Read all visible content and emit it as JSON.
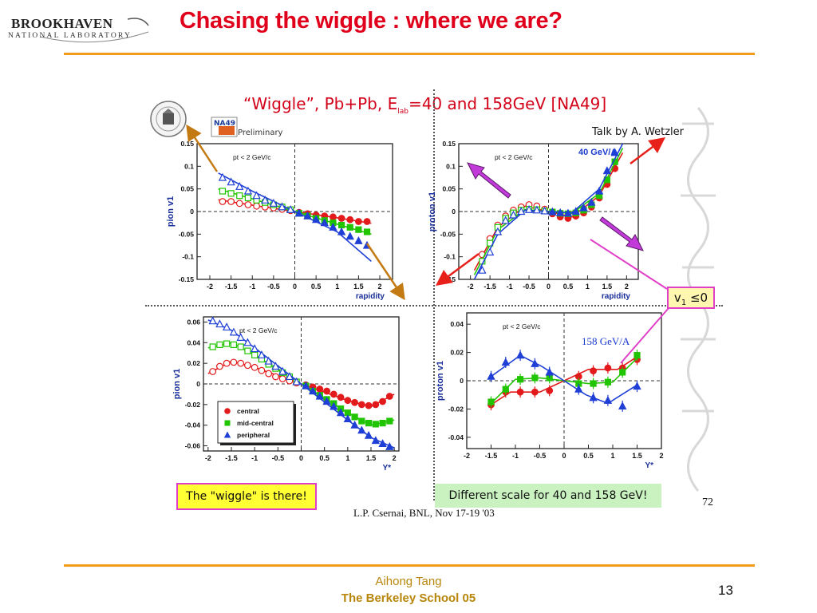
{
  "slide": {
    "title": "Chasing the wiggle : where we are?",
    "logo_name": "BROOKHAVEN",
    "logo_sub": "NATIONAL LABORATORY",
    "footer_author": "Aihong Tang",
    "footer_school": "The Berkeley School 05",
    "page_number": "13",
    "colors": {
      "title": "#e0001b",
      "rule": "#f39c1a",
      "footer": "#b8860b"
    }
  },
  "figure": {
    "title_main": "“Wiggle”, Pb+Pb, E",
    "title_sub": "lab",
    "title_end": "=40 and 158GeV [NA49]",
    "talk": "Talk by A. Wetzler",
    "na49_logo": "NA49",
    "preliminary": "Preliminary",
    "v1_label": "v",
    "v1_sub": "1",
    "v1_rest": " ≤0",
    "wiggle_note": "The \"wiggle\" is there!",
    "scale_note": "Different scale for 40 and 158 GeV!",
    "page_ref": "72",
    "credit": "L.P. Csernai, BNL, Nov 17-19 '03"
  },
  "chart_data": [
    {
      "type": "scatter",
      "id": "pion40",
      "ylabel": "pion v1",
      "xlabel": "rapidity",
      "annotation": "pt < 2 GeV/c",
      "xlim": [
        -2.3,
        2.3
      ],
      "ylim": [
        -0.15,
        0.15
      ],
      "xticks": [
        -2,
        -1.5,
        -1,
        -0.5,
        0,
        0.5,
        1,
        1.5,
        2
      ],
      "yticks": [
        -0.15,
        -0.1,
        -0.05,
        0,
        0.05,
        0.1,
        0.15
      ],
      "series": [
        {
          "color": "#e31a1c",
          "marker": "circle",
          "x": [
            -1.7,
            -1.5,
            -1.3,
            -1.1,
            -0.9,
            -0.7,
            -0.5,
            -0.3,
            -0.1,
            0.1,
            0.3,
            0.5,
            0.7,
            0.9,
            1.1,
            1.3,
            1.5,
            1.7
          ],
          "y": [
            0.022,
            0.022,
            0.018,
            0.015,
            0.012,
            0.01,
            0.008,
            0.005,
            0.002,
            -0.002,
            -0.005,
            -0.008,
            -0.01,
            -0.012,
            -0.015,
            -0.018,
            -0.022,
            -0.022
          ],
          "fit": [
            [
              -1.8,
              0.026
            ],
            [
              -1,
              0.014
            ],
            [
              0,
              0
            ],
            [
              1,
              -0.014
            ],
            [
              1.8,
              -0.026
            ]
          ]
        },
        {
          "color": "#21c400",
          "marker": "square",
          "x": [
            -1.7,
            -1.5,
            -1.3,
            -1.1,
            -0.9,
            -0.7,
            -0.5,
            -0.3,
            -0.1,
            0.1,
            0.3,
            0.5,
            0.7,
            0.9,
            1.1,
            1.3,
            1.5,
            1.7
          ],
          "y": [
            0.045,
            0.04,
            0.035,
            0.03,
            0.025,
            0.02,
            0.015,
            0.01,
            0.004,
            -0.004,
            -0.01,
            -0.015,
            -0.02,
            -0.025,
            -0.03,
            -0.035,
            -0.04,
            -0.045
          ],
          "fit": [
            [
              -1.8,
              0.05
            ],
            [
              -1,
              0.028
            ],
            [
              0,
              0
            ],
            [
              1,
              -0.028
            ],
            [
              1.8,
              -0.05
            ]
          ]
        },
        {
          "color": "#1f3fd6",
          "marker": "triangle",
          "x": [
            -1.7,
            -1.5,
            -1.3,
            -1.1,
            -0.9,
            -0.7,
            -0.5,
            -0.3,
            -0.1,
            0.1,
            0.3,
            0.5,
            0.7,
            0.9,
            1.1,
            1.3,
            1.5,
            1.7
          ],
          "y": [
            0.075,
            0.065,
            0.055,
            0.045,
            0.035,
            0.025,
            0.018,
            0.01,
            0.004,
            -0.004,
            -0.01,
            -0.018,
            -0.025,
            -0.035,
            -0.045,
            -0.055,
            -0.065,
            -0.075
          ],
          "fit": [
            [
              -1.8,
              0.085
            ],
            [
              -1,
              0.045
            ],
            [
              0,
              0
            ],
            [
              1,
              -0.045
            ],
            [
              1.8,
              -0.11
            ]
          ]
        }
      ]
    },
    {
      "type": "scatter",
      "id": "proton40",
      "ylabel": "proton v1",
      "xlabel": "rapidity",
      "annotation": "pt < 2 GeV/c",
      "energy_label": "40 GeV/A",
      "xlim": [
        -2.3,
        2.3
      ],
      "ylim": [
        -0.15,
        0.15
      ],
      "xticks": [
        -2,
        -1.5,
        -1,
        -0.5,
        0,
        0.5,
        1,
        1.5,
        2
      ],
      "yticks": [
        -0.15,
        -0.1,
        -0.05,
        0,
        0.05,
        0.1,
        0.15
      ],
      "series": [
        {
          "color": "#e31a1c",
          "marker": "circle",
          "x": [
            -1.7,
            -1.5,
            -1.3,
            -1.1,
            -0.9,
            -0.7,
            -0.5,
            -0.3,
            -0.1,
            0.1,
            0.3,
            0.5,
            0.7,
            0.9,
            1.1,
            1.3,
            1.5,
            1.7
          ],
          "y": [
            -0.095,
            -0.06,
            -0.03,
            -0.01,
            0.003,
            0.01,
            0.015,
            0.012,
            0.005,
            -0.005,
            -0.012,
            -0.015,
            -0.01,
            -0.003,
            0.01,
            0.03,
            0.06,
            0.095
          ],
          "fit": [
            [
              -1.9,
              -0.13
            ],
            [
              -1.3,
              -0.035
            ],
            [
              -0.6,
              0.012
            ],
            [
              0,
              0
            ],
            [
              0.6,
              -0.012
            ],
            [
              1.3,
              0.035
            ],
            [
              1.9,
              0.13
            ]
          ]
        },
        {
          "color": "#21c400",
          "marker": "square",
          "x": [
            -1.7,
            -1.5,
            -1.3,
            -1.1,
            -0.9,
            -0.7,
            -0.5,
            -0.3,
            -0.1,
            0.1,
            0.3,
            0.5,
            0.7,
            0.9,
            1.1,
            1.3,
            1.5,
            1.7
          ],
          "y": [
            -0.11,
            -0.07,
            -0.035,
            -0.015,
            -0.003,
            0.003,
            0.005,
            0.004,
            0.001,
            -0.001,
            -0.004,
            -0.005,
            -0.003,
            0.003,
            0.015,
            0.035,
            0.07,
            0.11
          ],
          "fit": [
            [
              -1.9,
              -0.14
            ],
            [
              -1.3,
              -0.04
            ],
            [
              -0.6,
              0.004
            ],
            [
              0,
              0
            ],
            [
              0.6,
              -0.004
            ],
            [
              1.3,
              0.04
            ],
            [
              1.9,
              0.14
            ]
          ]
        },
        {
          "color": "#1f3fd6",
          "marker": "triangle",
          "x": [
            -1.7,
            -1.5,
            -1.3,
            -1.1,
            -0.9,
            -0.7,
            -0.5,
            -0.3,
            -0.1,
            0.1,
            0.3,
            0.5,
            0.7,
            0.9,
            1.1,
            1.3,
            1.5,
            1.7
          ],
          "y": [
            -0.13,
            -0.09,
            -0.045,
            -0.02,
            -0.008,
            0.0,
            0.004,
            0.003,
            0.001,
            -0.001,
            -0.003,
            -0.004,
            0.0,
            0.008,
            0.02,
            0.045,
            0.09,
            0.13
          ],
          "fit": [
            [
              -1.9,
              -0.15
            ],
            [
              -1.3,
              -0.05
            ],
            [
              -0.6,
              0.003
            ],
            [
              0,
              0
            ],
            [
              0.6,
              -0.003
            ],
            [
              1.3,
              0.05
            ],
            [
              1.9,
              0.15
            ]
          ]
        }
      ]
    },
    {
      "type": "scatter",
      "id": "pion158",
      "ylabel": "pion v1",
      "xlabel": "Y*",
      "annotation": "pt < 2 GeV/c",
      "xlim": [
        -2.1,
        2.1
      ],
      "ylim": [
        -0.065,
        0.065
      ],
      "xticks": [
        -2,
        -1.5,
        -1,
        -0.5,
        0,
        0.5,
        1,
        1.5,
        2
      ],
      "yticks": [
        -0.06,
        -0.04,
        -0.02,
        0,
        0.02,
        0.04,
        0.06
      ],
      "legend": {
        "position": "lower-left",
        "entries": [
          "central",
          "mid-central",
          "peripheral"
        ]
      },
      "series": [
        {
          "name": "central",
          "color": "#e31a1c",
          "marker": "circle",
          "x": [
            -1.9,
            -1.75,
            -1.6,
            -1.45,
            -1.3,
            -1.15,
            -1,
            -0.85,
            -0.7,
            -0.55,
            -0.4,
            -0.25,
            -0.1,
            0.1,
            0.25,
            0.4,
            0.55,
            0.7,
            0.85,
            1,
            1.15,
            1.3,
            1.45,
            1.6,
            1.75,
            1.9
          ],
          "y": [
            0.012,
            0.017,
            0.02,
            0.021,
            0.02,
            0.018,
            0.016,
            0.013,
            0.01,
            0.007,
            0.005,
            0.003,
            0.001,
            -0.001,
            -0.003,
            -0.005,
            -0.007,
            -0.01,
            -0.013,
            -0.016,
            -0.018,
            -0.02,
            -0.021,
            -0.02,
            -0.017,
            -0.012
          ],
          "fit": [
            [
              -2,
              0.01
            ],
            [
              -1.5,
              0.022
            ],
            [
              -1,
              0.016
            ],
            [
              0,
              0
            ],
            [
              1,
              -0.016
            ],
            [
              1.5,
              -0.022
            ],
            [
              2,
              -0.01
            ]
          ]
        },
        {
          "name": "mid-central",
          "color": "#21c400",
          "marker": "square",
          "x": [
            -1.9,
            -1.75,
            -1.6,
            -1.45,
            -1.3,
            -1.15,
            -1,
            -0.85,
            -0.7,
            -0.55,
            -0.4,
            -0.25,
            -0.1,
            0.1,
            0.25,
            0.4,
            0.55,
            0.7,
            0.85,
            1,
            1.15,
            1.3,
            1.45,
            1.6,
            1.75,
            1.9
          ],
          "y": [
            0.036,
            0.038,
            0.039,
            0.038,
            0.036,
            0.032,
            0.028,
            0.024,
            0.019,
            0.015,
            0.011,
            0.007,
            0.002,
            -0.002,
            -0.007,
            -0.011,
            -0.015,
            -0.019,
            -0.024,
            -0.028,
            -0.032,
            -0.036,
            -0.038,
            -0.039,
            -0.038,
            -0.036
          ],
          "fit": [
            [
              -2,
              0.035
            ],
            [
              -1.5,
              0.04
            ],
            [
              -1,
              0.028
            ],
            [
              0,
              0
            ],
            [
              1,
              -0.028
            ],
            [
              1.5,
              -0.04
            ],
            [
              2,
              -0.035
            ]
          ]
        },
        {
          "name": "peripheral",
          "color": "#1f3fd6",
          "marker": "triangle",
          "x": [
            -1.9,
            -1.75,
            -1.6,
            -1.45,
            -1.3,
            -1.15,
            -1,
            -0.85,
            -0.7,
            -0.55,
            -0.4,
            -0.25,
            -0.1,
            0.1,
            0.25,
            0.4,
            0.55,
            0.7,
            0.85,
            1,
            1.15,
            1.3,
            1.45,
            1.6,
            1.75,
            1.9
          ],
          "y": [
            0.061,
            0.058,
            0.055,
            0.05,
            0.045,
            0.04,
            0.034,
            0.028,
            0.022,
            0.017,
            0.012,
            0.007,
            0.002,
            -0.002,
            -0.007,
            -0.012,
            -0.017,
            -0.022,
            -0.028,
            -0.034,
            -0.04,
            -0.045,
            -0.05,
            -0.055,
            -0.058,
            -0.061
          ],
          "fit": [
            [
              -2,
              0.062
            ],
            [
              -1.5,
              0.052
            ],
            [
              -1,
              0.035
            ],
            [
              0,
              0
            ],
            [
              1,
              -0.035
            ],
            [
              1.5,
              -0.052
            ],
            [
              2,
              -0.062
            ]
          ]
        }
      ]
    },
    {
      "type": "scatter",
      "id": "proton158",
      "ylabel": "proton v1",
      "xlabel": "Y*",
      "annotation": "pt < 2 GeV/c",
      "energy_label": "158 GeV/A",
      "xlim": [
        -2,
        2
      ],
      "ylim": [
        -0.048,
        0.048
      ],
      "xticks": [
        -2,
        -1.5,
        -1,
        -0.5,
        0,
        0.5,
        1,
        1.5,
        2
      ],
      "yticks": [
        -0.04,
        -0.02,
        0,
        0.02,
        0.04
      ],
      "series": [
        {
          "color": "#e31a1c",
          "marker": "circle",
          "x": [
            -1.5,
            -1.2,
            -0.9,
            -0.6,
            -0.3,
            0.3,
            0.6,
            0.9,
            1.2,
            1.5
          ],
          "y": [
            -0.017,
            -0.008,
            -0.008,
            -0.008,
            -0.007,
            0.003,
            0.007,
            0.009,
            0.009,
            0.015
          ],
          "fit": [
            [
              -1.5,
              -0.017
            ],
            [
              -1.1,
              -0.008
            ],
            [
              -0.5,
              -0.008
            ],
            [
              0,
              0
            ],
            [
              0.5,
              0.008
            ],
            [
              1.1,
              0.008
            ],
            [
              1.5,
              0.017
            ]
          ]
        },
        {
          "color": "#21c400",
          "marker": "square",
          "x": [
            -1.5,
            -1.2,
            -0.9,
            -0.6,
            -0.3,
            0.3,
            0.6,
            0.9,
            1.2,
            1.5
          ],
          "y": [
            -0.015,
            -0.006,
            0.001,
            0.002,
            0.002,
            -0.002,
            -0.002,
            -0.001,
            0.006,
            0.018
          ],
          "fit": [
            [
              -1.5,
              -0.016
            ],
            [
              -1,
              0.001
            ],
            [
              -0.5,
              0.002
            ],
            [
              0,
              0
            ],
            [
              0.5,
              -0.002
            ],
            [
              1,
              -0.001
            ],
            [
              1.5,
              0.016
            ]
          ]
        },
        {
          "color": "#1f3fd6",
          "marker": "triangle",
          "x": [
            -1.5,
            -1.2,
            -0.9,
            -0.6,
            -0.3,
            0.3,
            0.6,
            0.9,
            1.2,
            1.5
          ],
          "y": [
            0.003,
            0.013,
            0.018,
            0.012,
            0.006,
            -0.006,
            -0.012,
            -0.014,
            -0.018,
            -0.004
          ],
          "fit": [
            [
              -1.5,
              0.003
            ],
            [
              -0.9,
              0.018
            ],
            [
              -0.45,
              0.01
            ],
            [
              0,
              0
            ],
            [
              0.45,
              -0.01
            ],
            [
              0.9,
              -0.016
            ],
            [
              1.5,
              -0.003
            ]
          ]
        }
      ]
    }
  ]
}
